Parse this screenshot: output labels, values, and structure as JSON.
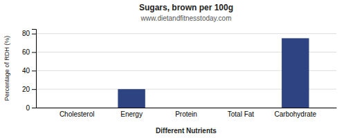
{
  "chart_data": {
    "type": "bar",
    "title": "Sugars, brown per 100g",
    "subtitle": "www.dietandfitnesstoday.com",
    "xlabel": "Different Nutrients",
    "ylabel": "Percentage of RDH (%)",
    "categories": [
      "Cholesterol",
      "Energy",
      "Protein",
      "Total Fat",
      "Carbohydrate"
    ],
    "values": [
      0,
      20,
      0,
      0,
      75
    ],
    "color": "#2e4482",
    "ylim": [
      0,
      85
    ],
    "yticks": [
      0,
      20,
      40,
      60,
      80
    ],
    "grid": true
  }
}
